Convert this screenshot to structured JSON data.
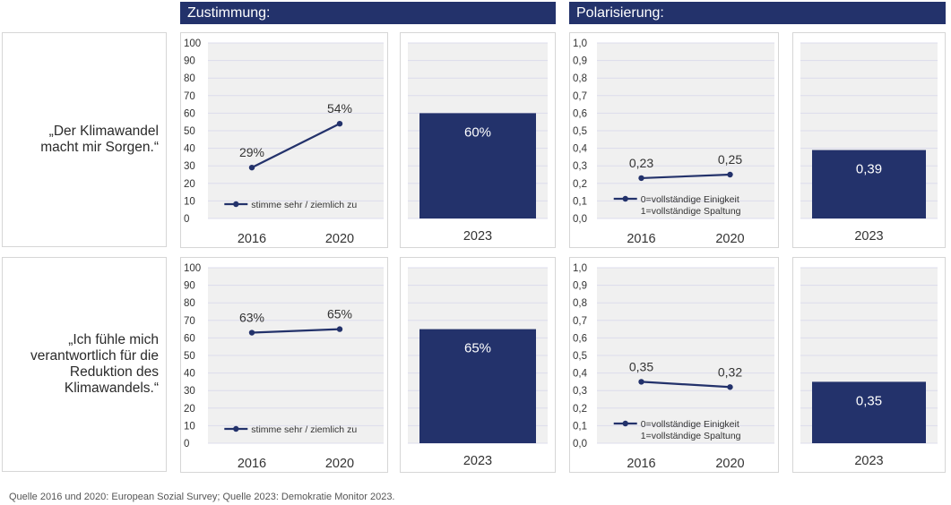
{
  "headers": {
    "zustimmung": "Zustimmung:",
    "polarisierung": "Polarisierung:"
  },
  "rows": [
    {
      "statement_lines": [
        "„Der Klimawandel",
        "macht mir Sorgen.“"
      ]
    },
    {
      "statement_lines": [
        "„Ich fühle mich",
        "verantwortlich für die",
        "Reduktion des",
        "Klimawandels.“"
      ]
    }
  ],
  "source": "Quelle 2016 und 2020: European Sozial Survey; Quelle 2023: Demokratie Monitor 2023.",
  "colors": {
    "navy": "#23326b",
    "plot_bg": "#f0f0f0",
    "grid": "#dcdcec"
  },
  "chart_data": [
    {
      "id": "zust-line-1",
      "type": "line",
      "row": 0,
      "panel": "zustimmung",
      "x": [
        "2016",
        "2020"
      ],
      "series": [
        {
          "name": "stimme sehr / ziemlich zu",
          "values": [
            29,
            54
          ],
          "labels": [
            "29%",
            "54%"
          ]
        }
      ],
      "yticks": [
        "0",
        "10",
        "20",
        "30",
        "40",
        "50",
        "60",
        "70",
        "80",
        "90",
        "100"
      ],
      "ylim": [
        0,
        100
      ],
      "grid": true,
      "legend": "bottom-center"
    },
    {
      "id": "zust-bar-1",
      "type": "bar",
      "row": 0,
      "panel": "zustimmung",
      "categories": [
        "2023"
      ],
      "values": [
        60
      ],
      "labels": [
        "60%"
      ],
      "ylim": [
        0,
        100
      ],
      "grid": true
    },
    {
      "id": "pol-line-1",
      "type": "line",
      "row": 0,
      "panel": "polarisierung",
      "x": [
        "2016",
        "2020"
      ],
      "series": [
        {
          "name_lines": [
            "0=vollständige Einigkeit",
            "1=vollständige Spaltung"
          ],
          "values": [
            0.23,
            0.25
          ],
          "labels": [
            "0,23",
            "0,25"
          ]
        }
      ],
      "yticks": [
        "0,0",
        "0,1",
        "0,2",
        "0,3",
        "0,4",
        "0,5",
        "0,6",
        "0,7",
        "0,8",
        "0,9",
        "1,0"
      ],
      "ylim": [
        0,
        1
      ],
      "grid": true,
      "legend": "bottom-center"
    },
    {
      "id": "pol-bar-1",
      "type": "bar",
      "row": 0,
      "panel": "polarisierung",
      "categories": [
        "2023"
      ],
      "values": [
        0.39
      ],
      "labels": [
        "0,39"
      ],
      "ylim": [
        0,
        1
      ],
      "grid": true
    },
    {
      "id": "zust-line-2",
      "type": "line",
      "row": 1,
      "panel": "zustimmung",
      "x": [
        "2016",
        "2020"
      ],
      "series": [
        {
          "name": "stimme sehr / ziemlich zu",
          "values": [
            63,
            65
          ],
          "labels": [
            "63%",
            "65%"
          ]
        }
      ],
      "yticks": [
        "0",
        "10",
        "20",
        "30",
        "40",
        "50",
        "60",
        "70",
        "80",
        "90",
        "100"
      ],
      "ylim": [
        0,
        100
      ],
      "grid": true,
      "legend": "bottom-center"
    },
    {
      "id": "zust-bar-2",
      "type": "bar",
      "row": 1,
      "panel": "zustimmung",
      "categories": [
        "2023"
      ],
      "values": [
        65
      ],
      "labels": [
        "65%"
      ],
      "ylim": [
        0,
        100
      ],
      "grid": true
    },
    {
      "id": "pol-line-2",
      "type": "line",
      "row": 1,
      "panel": "polarisierung",
      "x": [
        "2016",
        "2020"
      ],
      "series": [
        {
          "name_lines": [
            "0=vollständige Einigkeit",
            "1=vollständige Spaltung"
          ],
          "values": [
            0.35,
            0.32
          ],
          "labels": [
            "0,35",
            "0,32"
          ]
        }
      ],
      "yticks": [
        "0,0",
        "0,1",
        "0,2",
        "0,3",
        "0,4",
        "0,5",
        "0,6",
        "0,7",
        "0,8",
        "0,9",
        "1,0"
      ],
      "ylim": [
        0,
        1
      ],
      "grid": true,
      "legend": "bottom-center"
    },
    {
      "id": "pol-bar-2",
      "type": "bar",
      "row": 1,
      "panel": "polarisierung",
      "categories": [
        "2023"
      ],
      "values": [
        0.35
      ],
      "labels": [
        "0,35"
      ],
      "ylim": [
        0,
        1
      ],
      "grid": true
    }
  ]
}
